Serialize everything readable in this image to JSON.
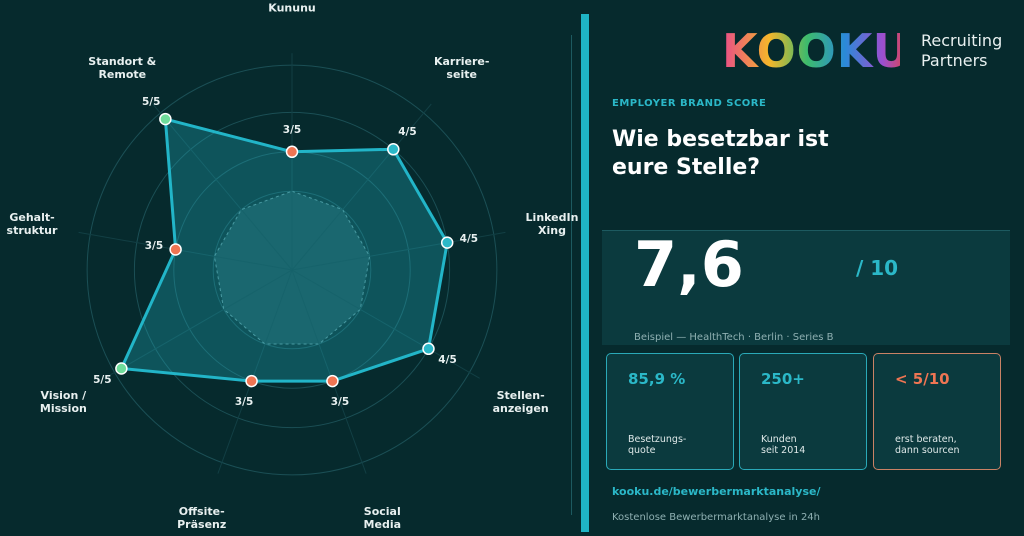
{
  "chart_data": {
    "type": "radar",
    "categories": [
      "Kununu",
      "Karriere-\nseite",
      "LinkedIn\nXing",
      "Stellen-\nanzeigen",
      "Social\nMedia",
      "Offsite-\nPräsenz",
      "Vision /\nMission",
      "Gehalt-\nstruktur",
      "Standort &\nRemote"
    ],
    "values": [
      3,
      4,
      4,
      4,
      3,
      3,
      5,
      3,
      5
    ],
    "value_labels": [
      "3/5",
      "4/5",
      "4/5",
      "4/5",
      "3/5",
      "3/5",
      "5/5",
      "3/5",
      "5/5"
    ],
    "point_colors": [
      "#ef7553",
      "#2bb8c8",
      "#2bb8c8",
      "#2bb8c8",
      "#ef7553",
      "#ef7553",
      "#6fdc9b",
      "#ef7553",
      "#6fdc9b"
    ],
    "color": "#22b5c8",
    "rlim": [
      0,
      5
    ]
  },
  "brand": {
    "logo": "KOOKU",
    "tagline": "Recruiting\nPartners"
  },
  "kicker": "EMPLOYER BRAND SCORE",
  "heading": "Wie besetzbar ist\neure Stelle?",
  "score": {
    "value": "7,6",
    "scale": "/ 10",
    "caption": "Beispiel — HealthTech · Berlin · Series B"
  },
  "cards": [
    {
      "value": "85,9 %",
      "label": "Besetzungs-\nquote"
    },
    {
      "value": "250+",
      "label": "Kunden\nseit 2014"
    },
    {
      "value": "< 5/10",
      "label": "erst beraten,\ndann sourcen"
    }
  ],
  "link": "kooku.de/bewerbermarktanalyse/",
  "footer": "Kostenlose Bewerbermarktanalyse in 24h"
}
